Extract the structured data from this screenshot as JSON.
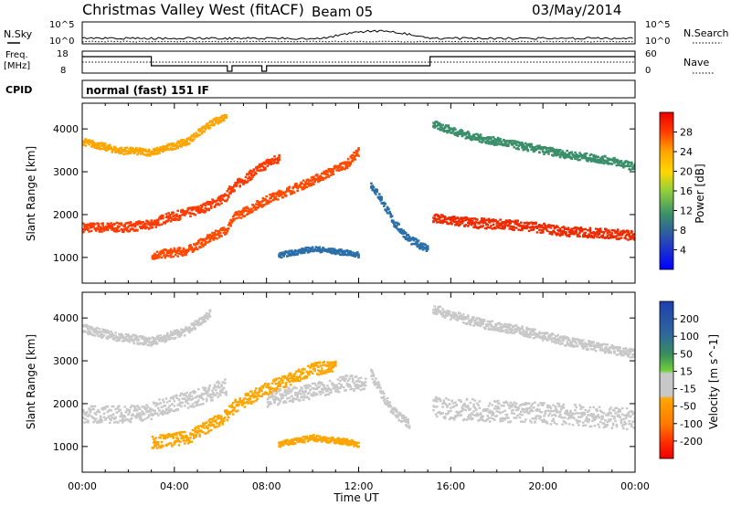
{
  "header": {
    "title": "Christmas Valley West (fitACF)",
    "beam": "Beam 05",
    "date": "03/May/2014"
  },
  "noise_panel": {
    "left_label": "N.Sky",
    "right_label": "N.Search",
    "left_ticks": [
      "10^5",
      "10^0"
    ],
    "right_ticks": [
      "10^5",
      "10^0"
    ]
  },
  "freq_panel": {
    "left_label_1": "Freq.",
    "left_label_2": "[MHz]",
    "left_ticks": [
      "18",
      "8"
    ],
    "right_label": "Nave",
    "right_ticks": [
      "60",
      "0"
    ]
  },
  "cpid_panel": {
    "label": "CPID",
    "text": "normal (fast) 151 IF"
  },
  "colors": {
    "power_scale": [
      "#0000ff",
      "#1e3cc8",
      "#2b6fa8",
      "#3a8f6a",
      "#4aa84a",
      "#8fcf3c",
      "#ffd700",
      "#ffa500",
      "#ff6a00",
      "#ff2a00",
      "#ee0000"
    ],
    "velocity_scale": [
      "#1e3fb0",
      "#2f6a9a",
      "#3a8f5a",
      "#6fcf3a",
      "#c8c8c8",
      "#c8c8c8",
      "#ffa500",
      "#ff7a00",
      "#ff3a00",
      "#ee0000"
    ]
  },
  "chart_data": [
    {
      "type": "heatmap",
      "name": "power",
      "ylabel": "Slant Range [km]",
      "ylim": [
        400,
        4600
      ],
      "yticks": [
        1000,
        2000,
        3000,
        4000
      ],
      "xlim": [
        0,
        24
      ],
      "colorbar": {
        "label": "Power [dB]",
        "range": [
          0,
          32
        ],
        "ticks": [
          "4",
          "8",
          "12",
          "16",
          "20",
          "24",
          "28"
        ]
      },
      "bands": [
        {
          "points": [
            [
              0.0,
              1700
            ],
            [
              1.5,
              1700
            ],
            [
              2.9,
              1750
            ],
            [
              3.5,
              1900
            ],
            [
              5.0,
              2100
            ],
            [
              6.2,
              2400
            ],
            [
              6.4,
              2600
            ],
            [
              8.0,
              3200
            ],
            [
              8.5,
              3300
            ]
          ],
          "thickness": 220,
          "color": "#ff3a00"
        },
        {
          "points": [
            [
              3.0,
              1050
            ],
            [
              4.5,
              1150
            ],
            [
              5.5,
              1450
            ],
            [
              6.2,
              1650
            ],
            [
              6.6,
              1950
            ],
            [
              8.0,
              2350
            ],
            [
              10.0,
              2800
            ],
            [
              11.5,
              3200
            ],
            [
              12.0,
              3500
            ]
          ],
          "thickness": 200,
          "color": "#ff4a00"
        },
        {
          "points": [
            [
              0.0,
              3700
            ],
            [
              1.5,
              3500
            ],
            [
              3.0,
              3450
            ],
            [
              4.5,
              3700
            ],
            [
              5.5,
              4100
            ],
            [
              6.2,
              4300
            ]
          ],
          "thickness": 160,
          "color": "#ffa500"
        },
        {
          "points": [
            [
              12.5,
              2700
            ],
            [
              13.0,
              2300
            ],
            [
              13.5,
              1800
            ],
            [
              14.2,
              1400
            ],
            [
              15.0,
              1200
            ]
          ],
          "thickness": 180,
          "color": "#2b6fa8"
        },
        {
          "points": [
            [
              15.2,
              1900
            ],
            [
              17.0,
              1800
            ],
            [
              19.0,
              1750
            ],
            [
              21.0,
              1600
            ],
            [
              23.0,
              1550
            ],
            [
              24.0,
              1500
            ]
          ],
          "thickness": 230,
          "color": "#ee2a00"
        },
        {
          "points": [
            [
              15.2,
              4100
            ],
            [
              17.0,
              3800
            ],
            [
              19.0,
              3600
            ],
            [
              21.0,
              3400
            ],
            [
              23.0,
              3250
            ],
            [
              24.0,
              3100
            ]
          ],
          "thickness": 180,
          "color": "#3a8f6a"
        },
        {
          "points": [
            [
              8.5,
              1050
            ],
            [
              10.0,
              1200
            ],
            [
              11.5,
              1100
            ],
            [
              12.0,
              1050
            ]
          ],
          "thickness": 120,
          "color": "#2b6fa8"
        }
      ]
    },
    {
      "type": "heatmap",
      "name": "velocity",
      "ylabel": "Slant Range [km]",
      "xlabel": "Time UT",
      "ylim": [
        400,
        4600
      ],
      "yticks": [
        1000,
        2000,
        3000,
        4000
      ],
      "xlim": [
        0,
        24
      ],
      "xticks": [
        "00:00",
        "04:00",
        "08:00",
        "12:00",
        "16:00",
        "20:00",
        "00:00"
      ],
      "colorbar": {
        "label": "Velocity [m s^-1]",
        "range": [
          -250,
          250
        ],
        "ticks": [
          "200",
          "100",
          "50",
          "15",
          "-15",
          "-50",
          "-100",
          "-200"
        ]
      },
      "bands": [
        {
          "points": [
            [
              0.0,
              1750
            ],
            [
              1.5,
              1750
            ],
            [
              2.9,
              1800
            ],
            [
              3.5,
              1950
            ],
            [
              5.0,
              2150
            ],
            [
              6.2,
              2400
            ]
          ],
          "thickness": 400,
          "color": "#c8c8c8"
        },
        {
          "points": [
            [
              3.0,
              1100
            ],
            [
              4.5,
              1200
            ],
            [
              5.5,
              1500
            ],
            [
              6.2,
              1700
            ],
            [
              6.6,
              1950
            ],
            [
              8.0,
              2350
            ],
            [
              10.0,
              2800
            ],
            [
              11.0,
              2900
            ]
          ],
          "thickness": 300,
          "color": "#ffa500"
        },
        {
          "points": [
            [
              8.0,
              2100
            ],
            [
              10.0,
              2300
            ],
            [
              11.5,
              2500
            ],
            [
              12.3,
              2400
            ]
          ],
          "thickness": 350,
          "color": "#c8c8c8"
        },
        {
          "points": [
            [
              15.2,
              1900
            ],
            [
              17.0,
              1850
            ],
            [
              19.0,
              1800
            ],
            [
              21.0,
              1750
            ],
            [
              23.0,
              1650
            ],
            [
              24.0,
              1650
            ]
          ],
          "thickness": 500,
          "color": "#c8c8c8"
        },
        {
          "points": [
            [
              0.0,
              3750
            ],
            [
              1.5,
              3550
            ],
            [
              3.0,
              3450
            ],
            [
              4.5,
              3700
            ],
            [
              5.5,
              4100
            ]
          ],
          "thickness": 200,
          "color": "#c8c8c8"
        },
        {
          "points": [
            [
              15.2,
              4200
            ],
            [
              17.0,
              3900
            ],
            [
              19.0,
              3700
            ],
            [
              21.0,
              3450
            ],
            [
              23.0,
              3250
            ],
            [
              24.0,
              3150
            ]
          ],
          "thickness": 220,
          "color": "#c8c8c8"
        },
        {
          "points": [
            [
              8.5,
              1050
            ],
            [
              10.0,
              1200
            ],
            [
              11.5,
              1100
            ],
            [
              12.0,
              1050
            ]
          ],
          "thickness": 140,
          "color": "#ffa500"
        },
        {
          "points": [
            [
              12.5,
              2700
            ],
            [
              13.0,
              2200
            ],
            [
              13.5,
              1800
            ],
            [
              14.2,
              1500
            ]
          ],
          "thickness": 220,
          "color": "#c8c8c8"
        }
      ]
    }
  ]
}
